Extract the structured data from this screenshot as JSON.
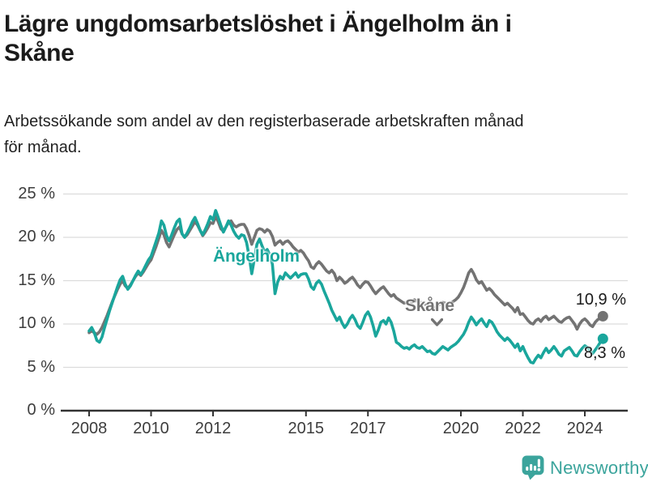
{
  "chart_data": {
    "type": "line",
    "title": "Lägre ungdomsarbetslöshet i Ängelholm än i\nSkåne",
    "subtitle": "Arbetssökande som andel av den registerbaserade arbetskraften månad\nför månad.",
    "x_unit": "month",
    "x_start": "2008-01",
    "x_end": "2024-08",
    "ylim": [
      0,
      25
    ],
    "grid": "horizontal",
    "legend_position": "inline-labels",
    "y_ticks": [
      {
        "value": 0,
        "label": "0 %"
      },
      {
        "value": 5,
        "label": "5 %"
      },
      {
        "value": 10,
        "label": "10 %"
      },
      {
        "value": 15,
        "label": "15 %"
      },
      {
        "value": 20,
        "label": "20 %"
      },
      {
        "value": 25,
        "label": "25 %"
      }
    ],
    "x_ticks": [
      {
        "year": 2008,
        "label": "2008"
      },
      {
        "year": 2010,
        "label": "2010"
      },
      {
        "year": 2012,
        "label": "2012"
      },
      {
        "year": 2015,
        "label": "2015"
      },
      {
        "year": 2017,
        "label": "2017"
      },
      {
        "year": 2020,
        "label": "2020"
      },
      {
        "year": 2022,
        "label": "2022"
      },
      {
        "year": 2024,
        "label": "2024"
      }
    ],
    "series": [
      {
        "name": "Ängelholm",
        "color": "#1aa69c",
        "end_label": "8,3 %",
        "end_value": 8.3,
        "values": [
          9.2,
          9.6,
          9.0,
          8.1,
          7.9,
          8.5,
          9.6,
          10.6,
          11.6,
          12.5,
          13.4,
          14.3,
          15.1,
          15.5,
          14.6,
          14.0,
          14.4,
          15.0,
          15.6,
          16.1,
          15.7,
          16.2,
          16.8,
          17.4,
          17.8,
          18.7,
          19.6,
          20.5,
          21.9,
          21.4,
          20.2,
          19.6,
          20.3,
          21.1,
          21.8,
          22.1,
          20.4,
          20.0,
          20.5,
          21.1,
          21.8,
          22.3,
          21.6,
          20.8,
          20.3,
          20.9,
          21.6,
          22.4,
          22.0,
          23.1,
          22.3,
          21.4,
          20.6,
          21.2,
          21.9,
          21.4,
          20.7,
          20.2,
          19.9,
          20.3,
          20.2,
          19.4,
          17.8,
          15.8,
          17.5,
          19.2,
          19.8,
          19.0,
          18.3,
          18.6,
          18.0,
          16.9,
          13.5,
          14.8,
          15.5,
          15.2,
          15.9,
          15.6,
          15.3,
          15.6,
          15.9,
          15.4,
          15.7,
          15.8,
          15.8,
          15.2,
          14.3,
          14.0,
          14.7,
          15.0,
          14.6,
          13.8,
          13.1,
          12.4,
          11.6,
          11.0,
          10.4,
          10.8,
          10.1,
          9.6,
          10.0,
          10.6,
          11.0,
          10.5,
          9.8,
          9.5,
          10.2,
          11.0,
          11.4,
          10.8,
          9.8,
          8.6,
          9.3,
          10.2,
          10.4,
          10.0,
          10.7,
          10.2,
          9.2,
          7.9,
          7.7,
          7.4,
          7.2,
          7.3,
          7.1,
          7.4,
          7.6,
          7.3,
          7.2,
          7.4,
          7.1,
          6.8,
          6.9,
          6.6,
          6.5,
          6.8,
          7.1,
          7.4,
          7.2,
          7.0,
          7.3,
          7.5,
          7.7,
          8.0,
          8.4,
          8.8,
          9.4,
          10.2,
          10.8,
          10.4,
          9.9,
          10.3,
          10.6,
          10.1,
          9.7,
          10.4,
          10.2,
          9.7,
          9.1,
          8.7,
          8.4,
          8.1,
          8.4,
          8.1,
          7.7,
          7.3,
          7.7,
          6.9,
          7.4,
          6.7,
          6.1,
          5.6,
          5.5,
          6.0,
          6.4,
          6.1,
          6.7,
          7.2,
          6.7,
          7.0,
          7.4,
          7.0,
          6.5,
          6.3,
          6.9,
          7.1,
          7.3,
          6.9,
          6.4,
          6.3,
          6.8,
          7.2,
          7.5,
          7.3,
          6.9,
          6.6,
          7.0,
          7.4,
          7.9,
          8.3
        ]
      },
      {
        "name": "Skåne",
        "color": "#737373",
        "end_label": "10,9 %",
        "end_value": 10.9,
        "values": [
          9.0,
          9.2,
          9.0,
          8.8,
          9.1,
          9.6,
          10.3,
          11.0,
          11.8,
          12.6,
          13.3,
          14.0,
          14.6,
          15.0,
          14.4,
          14.1,
          14.5,
          15.0,
          15.5,
          15.9,
          15.6,
          16.0,
          16.5,
          17.0,
          17.4,
          18.2,
          19.0,
          19.9,
          20.8,
          20.3,
          19.4,
          18.9,
          19.6,
          20.3,
          20.9,
          21.2,
          20.4,
          20.0,
          20.3,
          20.8,
          21.3,
          21.8,
          21.4,
          20.8,
          20.2,
          20.6,
          21.1,
          21.7,
          21.6,
          22.4,
          21.8,
          21.0,
          20.7,
          21.2,
          21.7,
          21.9,
          21.4,
          21.2,
          21.4,
          21.5,
          21.5,
          21.0,
          20.2,
          19.2,
          20.0,
          20.8,
          21.0,
          20.9,
          20.6,
          20.9,
          20.7,
          20.1,
          19.1,
          19.4,
          19.6,
          19.2,
          19.5,
          19.6,
          19.3,
          18.9,
          18.6,
          18.3,
          18.5,
          18.2,
          17.7,
          17.3,
          16.6,
          16.4,
          16.9,
          17.2,
          16.9,
          16.5,
          16.1,
          15.9,
          16.2,
          15.8,
          15.0,
          15.4,
          15.1,
          14.7,
          14.9,
          15.2,
          15.4,
          15.0,
          14.5,
          14.2,
          14.6,
          14.9,
          14.8,
          14.4,
          13.9,
          13.5,
          13.8,
          14.1,
          14.3,
          13.9,
          13.5,
          13.2,
          13.4,
          13.0,
          12.8,
          12.6,
          12.4,
          12.5,
          12.3,
          12.5,
          12.8,
          12.6,
          12.4,
          12.5,
          12.3,
          12.1,
          12.2,
          12.0,
          11.9,
          12.1,
          12.3,
          12.5,
          12.4,
          12.2,
          12.4,
          12.6,
          12.8,
          13.1,
          13.6,
          14.2,
          15.0,
          15.9,
          16.3,
          15.8,
          15.1,
          14.7,
          14.9,
          14.4,
          13.9,
          14.1,
          13.8,
          13.4,
          13.1,
          12.8,
          12.5,
          12.2,
          12.4,
          12.1,
          11.8,
          11.4,
          11.9,
          11.1,
          11.2,
          10.8,
          10.4,
          10.1,
          10.0,
          10.4,
          10.6,
          10.3,
          10.7,
          10.9,
          10.5,
          10.7,
          10.9,
          10.6,
          10.3,
          10.2,
          10.5,
          10.7,
          10.8,
          10.4,
          10.0,
          9.4,
          10.0,
          10.4,
          10.6,
          10.3,
          9.9,
          9.7,
          10.2,
          10.5,
          10.7,
          10.9
        ]
      }
    ]
  },
  "theme": {
    "background": "#ffffff",
    "title_text": "#1a1a1a",
    "subtitle_text": "#222222",
    "tick_text": "#3d3d3d",
    "value_text": "#1a1a1a",
    "grid_color": "#dcdcdc",
    "axis_color": "#333333"
  },
  "footer": {
    "brand": "Newsworthy",
    "brand_color": "#3ba49c"
  }
}
